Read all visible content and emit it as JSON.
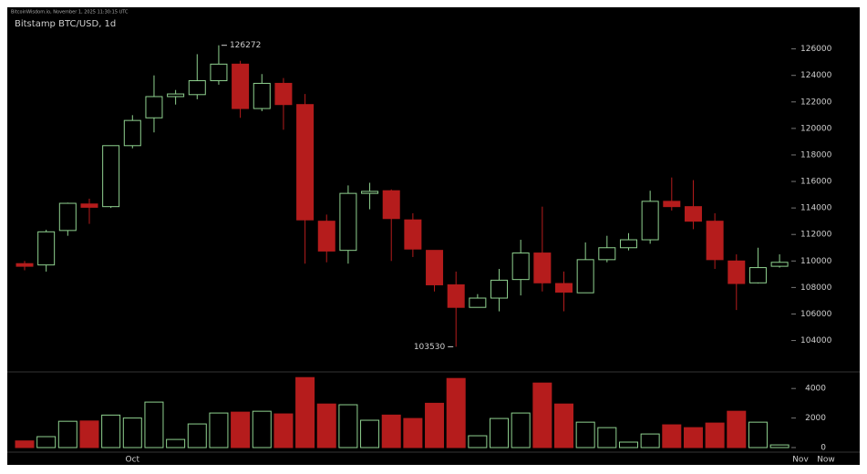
{
  "chart_data": {
    "type": "candlestick",
    "header": "BitcoinWisdom.io, November 1, 2025 11:30:15 UTC",
    "title": "Bitstamp BTC/USD, 1d",
    "categories": [
      null,
      null,
      null,
      null,
      null,
      "Oct",
      null,
      null,
      null,
      null,
      null,
      null,
      null,
      null,
      null,
      null,
      null,
      null,
      null,
      null,
      null,
      null,
      null,
      null,
      null,
      null,
      null,
      null,
      null,
      null,
      null,
      null,
      null,
      null,
      null,
      null
    ],
    "x_end_labels": [
      "Nov",
      "Now"
    ],
    "open": [
      109800,
      109700,
      112300,
      114300,
      114100,
      118700,
      120800,
      122400,
      122550,
      123600,
      124850,
      121500,
      123400,
      121800,
      113000,
      110800,
      115100,
      115300,
      113100,
      110800,
      108200,
      106500,
      107200,
      108600,
      110600,
      108300,
      107600,
      110100,
      111000,
      111600,
      114500,
      114100,
      113000,
      110000,
      108350,
      109600
    ],
    "high": [
      110000,
      112350,
      114400,
      114700,
      118700,
      121000,
      124000,
      122900,
      125600,
      126272,
      125100,
      124100,
      123800,
      122600,
      113500,
      115700,
      115900,
      115400,
      113600,
      110800,
      109200,
      107500,
      109400,
      111600,
      114100,
      109200,
      111400,
      111900,
      112100,
      115300,
      116300,
      116100,
      113600,
      110500,
      111000,
      110500
    ],
    "low": [
      109300,
      109200,
      111900,
      112800,
      114000,
      118500,
      119700,
      121800,
      122200,
      123300,
      120800,
      121300,
      119900,
      109800,
      109900,
      109800,
      113900,
      110000,
      110300,
      107700,
      103530,
      106500,
      106200,
      107400,
      107700,
      106200,
      107600,
      109900,
      110800,
      111300,
      113800,
      112400,
      109400,
      106300,
      108300,
      109500
    ],
    "close": [
      109600,
      112200,
      114350,
      114050,
      118700,
      120600,
      122400,
      122600,
      123600,
      124850,
      121500,
      123400,
      121800,
      113100,
      110750,
      115100,
      115250,
      113200,
      110900,
      108200,
      106500,
      107200,
      108550,
      110600,
      108350,
      107650,
      110100,
      111000,
      111600,
      114500,
      114100,
      113000,
      110100,
      108300,
      109500,
      109900
    ],
    "volume": [
      450,
      740,
      1780,
      1800,
      2200,
      2000,
      3080,
      550,
      1600,
      2340,
      2400,
      2460,
      2280,
      4740,
      2950,
      2900,
      1850,
      2200,
      1970,
      3000,
      4680,
      800,
      1970,
      2340,
      4370,
      2950,
      1720,
      1350,
      370,
      920,
      1540,
      1350,
      1660,
      2460,
      1720,
      180
    ],
    "up_color": "#8fd18f",
    "down_color": "#b51c1c",
    "ylim": [
      101700,
      129000
    ],
    "yticks": [
      104000,
      106000,
      108000,
      110000,
      112000,
      114000,
      116000,
      118000,
      120000,
      122000,
      124000,
      126000
    ],
    "vlim": [
      0,
      5000
    ],
    "vticks": [
      0,
      2000,
      4000
    ],
    "high_index": 9,
    "low_index": 20
  }
}
